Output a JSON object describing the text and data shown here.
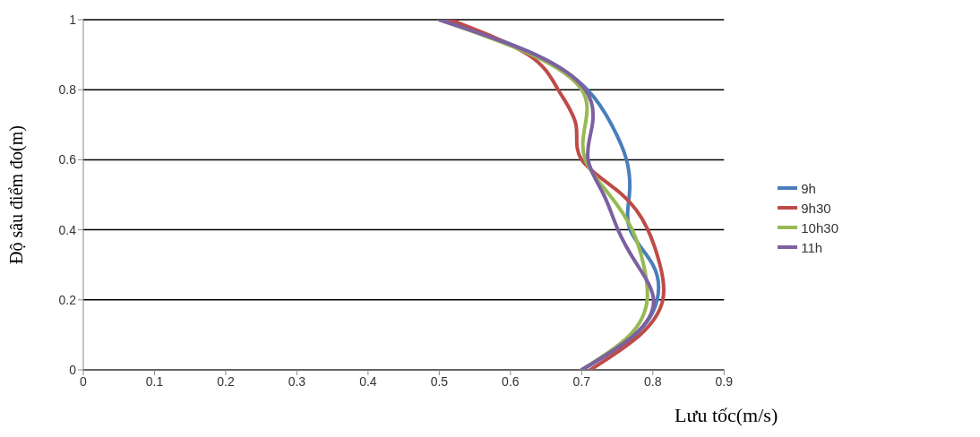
{
  "chart_data": {
    "type": "line",
    "xlabel": "Lưu tốc(m/s)",
    "ylabel": "Độ sâu điểm đo(m)",
    "xlim": [
      0,
      0.9
    ],
    "xticks": [
      0,
      0.1,
      0.2,
      0.3,
      0.4,
      0.5,
      0.6,
      0.7,
      0.8,
      0.9
    ],
    "ylim": [
      0,
      1
    ],
    "yticks": [
      0,
      0.2,
      0.4,
      0.6,
      0.8,
      1
    ],
    "grid": "y",
    "legend": "right",
    "marker": "none",
    "line_style": "solid",
    "series": [
      {
        "name": "9h",
        "color": "#4a7ebb",
        "x": [
          0.7,
          0.775,
          0.806,
          0.8,
          0.768,
          0.767,
          0.763,
          0.742,
          0.708,
          0.635,
          0.505
        ],
        "values": [
          0,
          0.1,
          0.2,
          0.3,
          0.4,
          0.5,
          0.6,
          0.7,
          0.8,
          0.9,
          1
        ]
      },
      {
        "name": "9h30",
        "color": "#be4b48",
        "x": [
          0.712,
          0.782,
          0.814,
          0.81,
          0.793,
          0.757,
          0.7,
          0.692,
          0.667,
          0.625,
          0.515
        ],
        "values": [
          0,
          0.1,
          0.2,
          0.3,
          0.4,
          0.5,
          0.6,
          0.7,
          0.8,
          0.9,
          1
        ]
      },
      {
        "name": "10h30",
        "color": "#98b954",
        "x": [
          0.7,
          0.768,
          0.792,
          0.787,
          0.771,
          0.739,
          0.705,
          0.705,
          0.7,
          0.63,
          0.5
        ],
        "values": [
          0,
          0.1,
          0.2,
          0.3,
          0.4,
          0.5,
          0.6,
          0.7,
          0.8,
          0.9,
          1
        ]
      },
      {
        "name": "11h",
        "color": "#7d60a0",
        "x": [
          0.7,
          0.774,
          0.801,
          0.778,
          0.751,
          0.731,
          0.709,
          0.715,
          0.705,
          0.635,
          0.5
        ],
        "values": [
          0,
          0.1,
          0.2,
          0.3,
          0.4,
          0.5,
          0.6,
          0.7,
          0.8,
          0.9,
          1
        ]
      }
    ]
  }
}
